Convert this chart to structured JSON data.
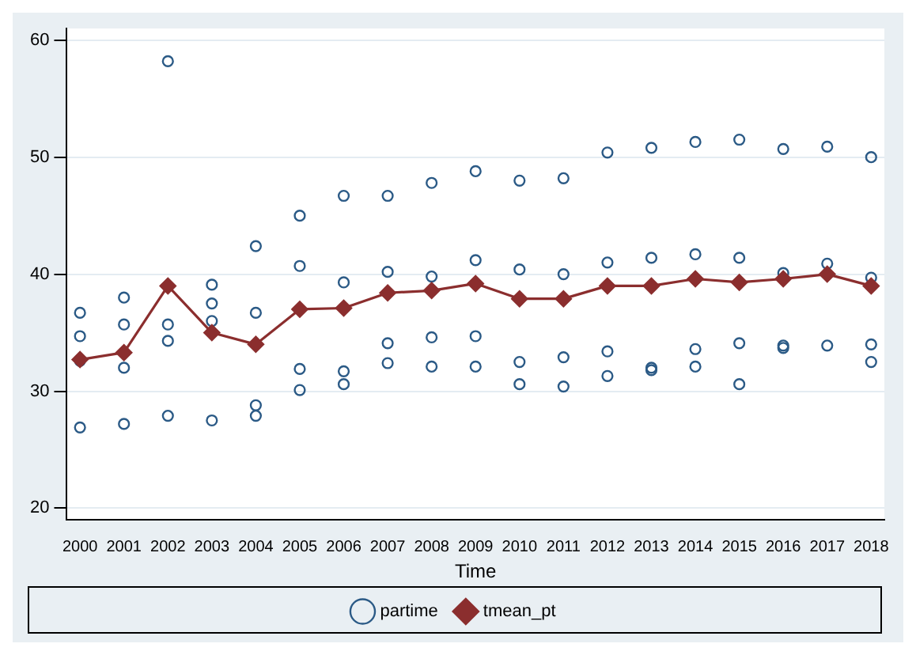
{
  "chart_data": {
    "type": "scatter",
    "xlabel": "Time",
    "xlim": [
      1999.7,
      2018.3
    ],
    "xticks": [
      2000,
      2001,
      2002,
      2003,
      2004,
      2005,
      2006,
      2007,
      2008,
      2009,
      2010,
      2011,
      2012,
      2013,
      2014,
      2015,
      2016,
      2017,
      2018
    ],
    "ylim": [
      19,
      61
    ],
    "yticks": [
      20,
      30,
      40,
      50,
      60
    ],
    "grid": "y",
    "legend": "bottom",
    "series": [
      {
        "name": "partime",
        "type": "scatter",
        "marker": "circle",
        "color": "#2b5a86",
        "x": [
          2000,
          2000,
          2000,
          2000,
          2001,
          2001,
          2001,
          2001,
          2002,
          2002,
          2002,
          2002,
          2003,
          2003,
          2003,
          2003,
          2004,
          2004,
          2004,
          2004,
          2005,
          2005,
          2005,
          2005,
          2006,
          2006,
          2006,
          2006,
          2007,
          2007,
          2007,
          2007,
          2008,
          2008,
          2008,
          2008,
          2009,
          2009,
          2009,
          2009,
          2010,
          2010,
          2010,
          2010,
          2011,
          2011,
          2011,
          2011,
          2012,
          2012,
          2012,
          2012,
          2013,
          2013,
          2013,
          2013,
          2014,
          2014,
          2014,
          2014,
          2015,
          2015,
          2015,
          2015,
          2016,
          2016,
          2016,
          2016,
          2017,
          2017,
          2017,
          2018,
          2018,
          2018,
          2018
        ],
        "values": [
          36.7,
          34.7,
          32.6,
          26.9,
          38.0,
          35.7,
          32.0,
          27.2,
          58.2,
          35.7,
          34.3,
          27.9,
          39.1,
          37.5,
          36.0,
          27.5,
          42.4,
          36.7,
          28.8,
          27.9,
          45.0,
          40.7,
          31.9,
          30.1,
          46.7,
          39.3,
          31.7,
          30.6,
          46.7,
          40.2,
          34.1,
          32.4,
          47.8,
          39.8,
          34.6,
          32.1,
          48.8,
          41.2,
          34.7,
          32.1,
          48.0,
          40.4,
          32.5,
          30.6,
          48.2,
          40.0,
          32.9,
          30.4,
          50.4,
          41.0,
          33.4,
          31.3,
          50.8,
          41.4,
          32.0,
          31.8,
          51.3,
          41.7,
          33.6,
          32.1,
          51.5,
          41.4,
          34.1,
          30.6,
          50.7,
          40.1,
          33.9,
          33.7,
          50.9,
          40.9,
          33.9,
          50.0,
          39.7,
          34.0,
          32.5
        ]
      },
      {
        "name": "tmean_pt",
        "type": "line",
        "marker": "diamond",
        "color": "#8b2e2e",
        "x": [
          2000,
          2001,
          2002,
          2003,
          2004,
          2005,
          2006,
          2007,
          2008,
          2009,
          2010,
          2011,
          2012,
          2013,
          2014,
          2015,
          2016,
          2017,
          2018
        ],
        "values": [
          32.7,
          33.3,
          39.0,
          35.0,
          34.0,
          37.0,
          37.1,
          38.4,
          38.6,
          39.2,
          37.9,
          37.9,
          39.0,
          39.0,
          39.6,
          39.3,
          39.6,
          40.0,
          39.0
        ]
      }
    ]
  }
}
